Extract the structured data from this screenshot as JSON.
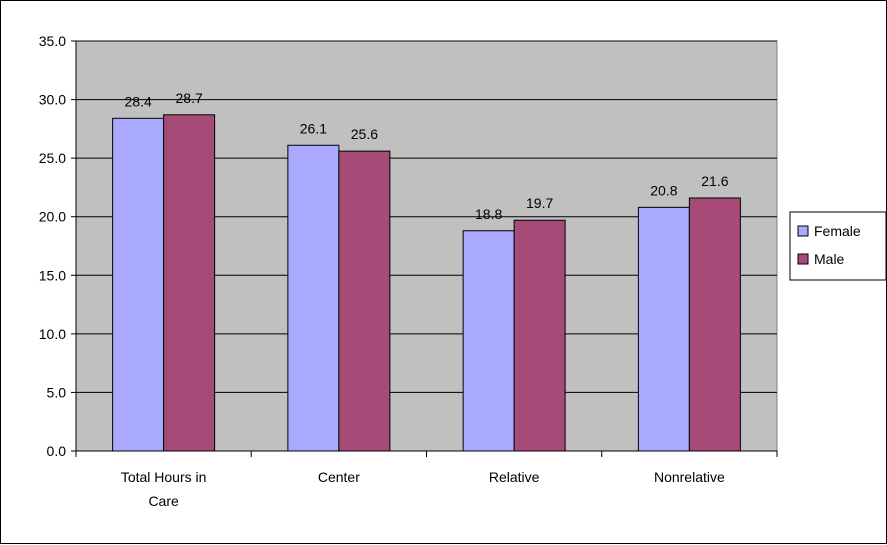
{
  "chart_data": {
    "type": "bar",
    "title": "",
    "xlabel": "",
    "ylabel": "",
    "categories": [
      [
        "Total Hours in",
        "Care"
      ],
      [
        "Center"
      ],
      [
        "Relative"
      ],
      [
        "Nonrelative"
      ]
    ],
    "series": [
      {
        "name": "Female",
        "color": "#a9aaff",
        "values": [
          28.4,
          26.1,
          18.8,
          20.8
        ]
      },
      {
        "name": "Male",
        "color": "#a64a77",
        "values": [
          28.7,
          25.6,
          19.7,
          21.6
        ]
      }
    ],
    "ylim": [
      0,
      35
    ],
    "ytick_step": 5,
    "ytick_labels": [
      "0.0",
      "5.0",
      "10.0",
      "15.0",
      "20.0",
      "25.0",
      "30.0",
      "35.0"
    ],
    "grid": true,
    "plot_background": "#c0c0c0",
    "legend": {
      "position": "right"
    }
  }
}
